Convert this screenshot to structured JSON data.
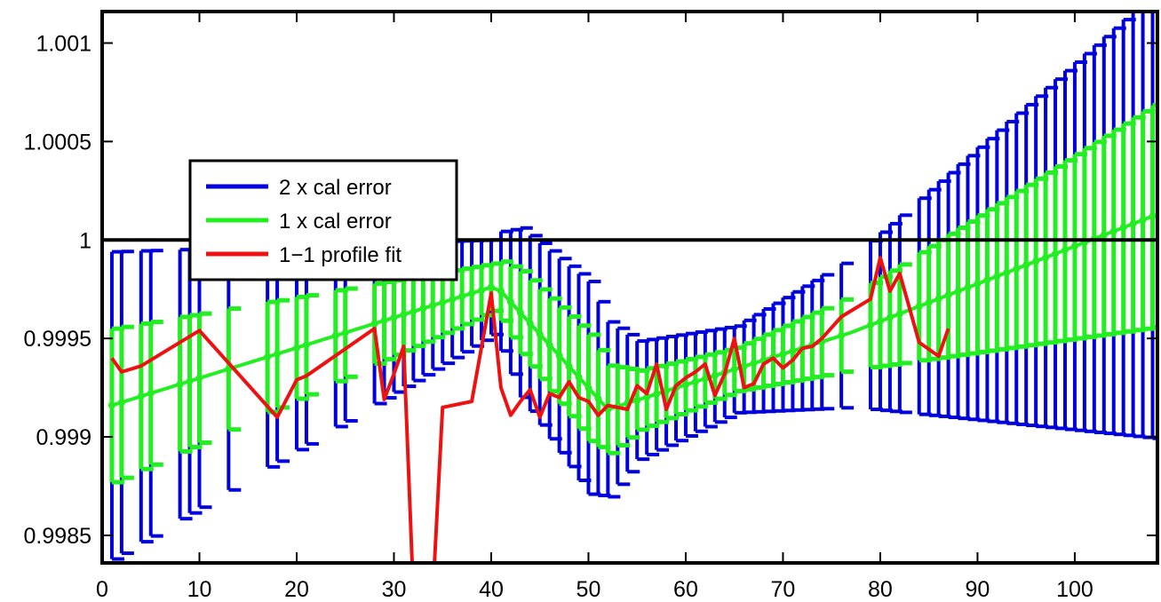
{
  "chart_data": {
    "type": "line",
    "title": "",
    "xlabel": "",
    "ylabel": "",
    "xlim": [
      0,
      108.5
    ],
    "ylim": [
      0.99836,
      1.00116
    ],
    "x_ticks": [
      0,
      10,
      20,
      30,
      40,
      50,
      60,
      70,
      80,
      90,
      100
    ],
    "x_tick_labels": [
      "0",
      "10",
      "20",
      "30",
      "40",
      "50",
      "60",
      "70",
      "80",
      "90",
      "100"
    ],
    "y_ticks": [
      0.9985,
      0.999,
      0.9995,
      1,
      1.0005,
      1.001
    ],
    "y_tick_labels": [
      "0.9985",
      "0.999",
      "0.9995",
      "1",
      "1.0005",
      "1.001"
    ],
    "grid": false,
    "legend_position": "left",
    "reference_line": {
      "y": 1
    },
    "colors": {
      "blue": "#0000dd",
      "green": "#22ee22",
      "red": "#ee1111",
      "axis": "#000000"
    },
    "center_knots": {
      "x": [
        1,
        40,
        41,
        52,
        77,
        108.5
      ],
      "y": [
        0.99916,
        0.99976,
        0.99974,
        0.99914,
        0.99953,
        1.00013
      ]
    },
    "blue_half_knots": {
      "x": [
        1,
        40,
        43,
        50,
        55,
        65,
        77,
        108.5
      ],
      "y": [
        0.00078,
        0.00024,
        0.00043,
        0.00054,
        0.0003,
        0.00022,
        0.00038,
        0.00114
      ]
    },
    "green_half_knots": {
      "x": [
        1,
        40,
        43,
        50,
        55,
        65,
        77,
        108.5
      ],
      "y": [
        0.00039,
        0.00012,
        0.00021,
        0.00027,
        0.00015,
        0.00011,
        0.00019,
        0.00057
      ]
    },
    "blue_x": [
      1,
      2,
      4,
      5,
      8,
      9,
      10,
      13,
      17,
      18,
      20,
      21,
      24,
      25,
      28,
      29,
      30,
      31,
      32,
      33,
      34,
      35,
      36,
      37,
      38,
      39,
      40,
      41,
      42,
      43,
      44,
      45,
      46,
      47,
      48,
      49,
      50,
      51,
      52,
      53,
      54,
      55,
      56,
      57,
      58,
      59,
      60,
      61,
      62,
      63,
      64,
      65,
      66,
      67,
      68,
      69,
      70,
      71,
      72,
      73,
      74,
      76,
      79,
      80,
      81,
      82,
      84,
      85,
      86,
      87,
      88,
      89,
      90,
      91,
      92,
      93,
      94,
      95,
      96,
      97,
      98,
      99,
      100,
      101,
      102,
      103,
      104,
      105,
      106,
      107,
      108
    ],
    "green_x": [
      1,
      2,
      4,
      5,
      8,
      9,
      10,
      13,
      17,
      18,
      20,
      21,
      24,
      25,
      28,
      29,
      30,
      31,
      32,
      33,
      34,
      35,
      36,
      37,
      38,
      39,
      40,
      41,
      42,
      43,
      44,
      45,
      46,
      47,
      48,
      49,
      50,
      51,
      52,
      53,
      54,
      55,
      56,
      57,
      58,
      59,
      60,
      61,
      62,
      63,
      64,
      65,
      66,
      67,
      68,
      69,
      70,
      71,
      72,
      73,
      74,
      76,
      79,
      80,
      81,
      82,
      84,
      85,
      86,
      87,
      88,
      89,
      90,
      91,
      92,
      93,
      94,
      95,
      96,
      97,
      98,
      99,
      100,
      101,
      102,
      103,
      104,
      105,
      106,
      107,
      108
    ],
    "series": [
      {
        "name": "2 x cal error",
        "color": "#0000dd"
      },
      {
        "name": "1 x cal error",
        "color": "#22ee22"
      },
      {
        "name": "1−1 profile fit",
        "color": "#ee1111",
        "x": [
          1,
          2,
          4,
          10,
          18,
          20,
          21,
          28,
          29,
          30,
          31,
          32,
          34,
          35,
          38,
          40,
          41,
          42,
          43,
          44,
          45,
          46,
          47,
          48,
          49,
          50,
          51,
          52,
          53,
          54,
          55,
          56,
          57,
          58,
          59,
          60,
          61,
          62,
          63,
          64,
          65,
          66,
          67,
          68,
          69,
          70,
          71,
          72,
          73,
          74,
          76,
          79,
          80,
          81,
          82,
          84,
          86,
          87
        ],
        "y": [
          0.9994,
          0.99933,
          0.99936,
          0.99954,
          0.9991,
          0.99929,
          0.99931,
          0.99955,
          0.99919,
          0.99932,
          0.99946,
          0.9982,
          0.9982,
          0.99915,
          0.99918,
          0.99973,
          0.99925,
          0.99911,
          0.99918,
          0.99924,
          0.9991,
          0.99922,
          0.9992,
          0.99928,
          0.9992,
          0.99918,
          0.99911,
          0.99916,
          0.99915,
          0.99914,
          0.99926,
          0.99922,
          0.99937,
          0.99914,
          0.99926,
          0.9993,
          0.99933,
          0.99937,
          0.99921,
          0.99932,
          0.9995,
          0.99925,
          0.99927,
          0.99937,
          0.9994,
          0.99935,
          0.99939,
          0.99945,
          0.99946,
          0.9995,
          0.99961,
          0.9997,
          0.99991,
          0.99974,
          0.99983,
          0.99948,
          0.99941,
          0.99955
        ]
      }
    ]
  }
}
